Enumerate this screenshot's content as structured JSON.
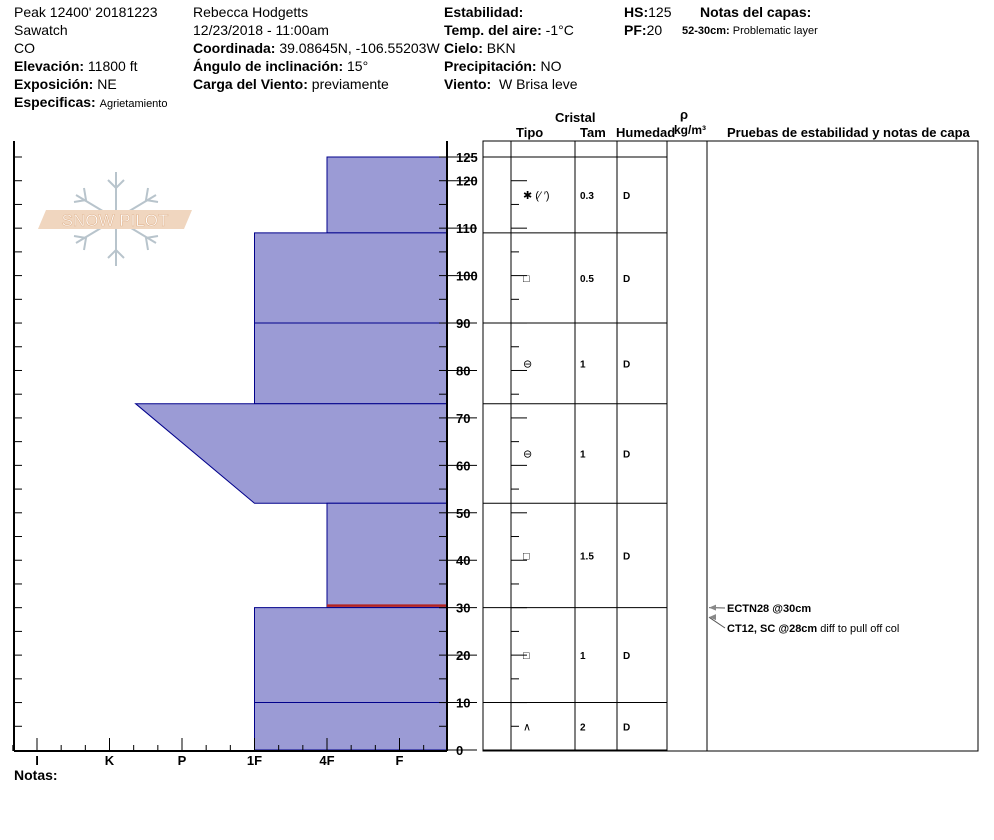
{
  "header": {
    "site": "Peak 12400' 20181223",
    "range": "Sawatch",
    "state": "CO",
    "elevation_label": "Elevación:",
    "elevation": "11800 ft",
    "aspect_label": "Exposición:",
    "aspect": "NE",
    "specifics_label": "Especificas:",
    "specifics": "Agrietamiento",
    "observer": "Rebecca Hodgetts",
    "datetime": "12/23/2018 - 11:00am",
    "coord_label": "Coordinada:",
    "coord": "39.08645N, -106.55203W",
    "slope_label": "Ángulo de inclinación:",
    "slope": "15°",
    "windload_label": "Carga del Viento:",
    "windload": "previamente",
    "stability_label": "Estabilidad:",
    "stability": "",
    "airtemp_label": "Temp. del aire:",
    "airtemp": "-1°C",
    "sky_label": "Cielo:",
    "sky": "BKN",
    "precip_label": "Precipitación:",
    "precip": "NO",
    "wind_label": "Viento:",
    "wind": "W Brisa leve",
    "hs_label": "HS:",
    "hs": "125",
    "pf_label": "PF:",
    "pf": "20",
    "layer_notes_label": "Notas del capas:",
    "layer_note_range": "52-30cm:",
    "layer_note": "Problematic layer"
  },
  "table_header": {
    "crystal": "Cristal",
    "type": "Tipo",
    "size": "Tam",
    "moisture": "Humedad",
    "rho": "ρ",
    "density_unit": "kg/m³",
    "tests": "Pruebas de estabilidad y notas de capa"
  },
  "notes_label": "Notas:",
  "logo_text": "SNOW PILOT",
  "colors": {
    "layer_fill": "#9b9bd5",
    "layer_stroke": "#00008b",
    "critical": "#b22222"
  },
  "chart_data": {
    "type": "snow-profile",
    "x_ticks": [
      "I",
      "K",
      "P",
      "1F",
      "4F",
      "F"
    ],
    "y_ticks": [
      0,
      10,
      20,
      30,
      40,
      50,
      60,
      70,
      80,
      90,
      100,
      110,
      120,
      125
    ],
    "ylim": [
      0,
      125
    ],
    "layers": [
      {
        "top": 125,
        "bottom": 109,
        "hardness_top": "4F",
        "hardness_bottom": "4F",
        "grain": "precip-particles",
        "grain_text": "(⁄ ′)",
        "size": "0.3",
        "moisture": "D"
      },
      {
        "top": 109,
        "bottom": 90,
        "hardness_top": "1F",
        "hardness_bottom": "1F",
        "grain": "faceted",
        "size": "0.5",
        "moisture": "D"
      },
      {
        "top": 90,
        "bottom": 73,
        "hardness_top": "1F",
        "hardness_bottom": "1F",
        "grain": "rounding-faceted",
        "size": "1",
        "moisture": "D"
      },
      {
        "top": 73,
        "bottom": 52,
        "hardness_top": "P+",
        "hardness_bottom": "1F",
        "grain": "rounding-faceted",
        "size": "1",
        "moisture": "D"
      },
      {
        "top": 52,
        "bottom": 30,
        "hardness_top": "4F",
        "hardness_bottom": "4F",
        "grain": "faceted",
        "size": "1.5",
        "moisture": "D",
        "critical_bottom": true
      },
      {
        "top": 30,
        "bottom": 10,
        "hardness_top": "1F",
        "hardness_bottom": "1F",
        "grain": "faceted",
        "size": "1",
        "moisture": "D"
      },
      {
        "top": 10,
        "bottom": 0,
        "hardness_top": "1F",
        "hardness_bottom": "1F",
        "grain": "depth-hoar",
        "size": "2",
        "moisture": "D"
      }
    ],
    "tests": [
      {
        "depth": 30,
        "text": "ECTN28 @30cm",
        "note": ""
      },
      {
        "depth": 28,
        "text": "CT12, SC @28cm",
        "note": "diff to pull off col"
      }
    ]
  }
}
